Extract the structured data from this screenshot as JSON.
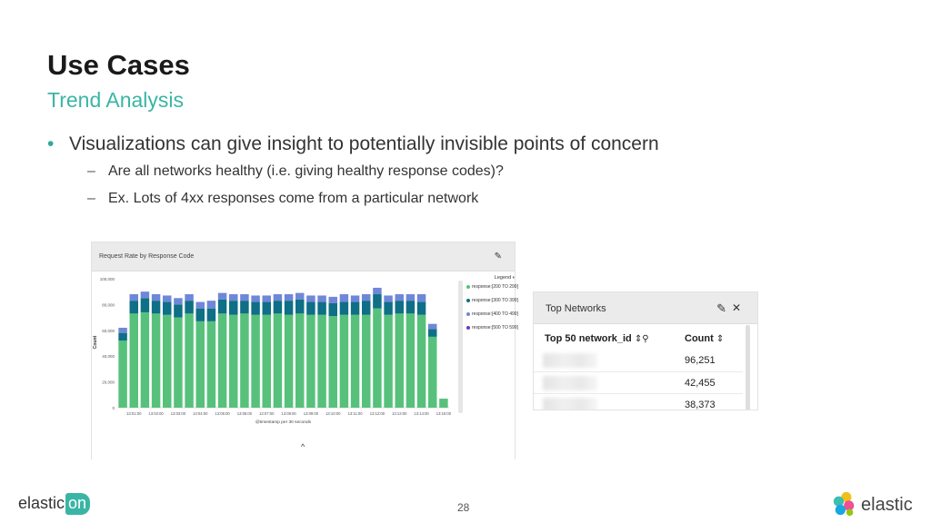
{
  "slide": {
    "title": "Use Cases",
    "subtitle": "Trend Analysis",
    "bullet": "Visualizations can give insight to potentially invisible points of concern",
    "sub_bullets": [
      "Are all networks healthy (i.e. giving healthy response codes)?",
      "Ex. Lots of 4xx responses come from a particular network"
    ],
    "page_number": "28"
  },
  "chart_panel": {
    "title": "Request Rate by Response Code",
    "legend_title": "Legend",
    "legend": [
      {
        "label": "response:[200 TO 299]",
        "color": "#57c17b"
      },
      {
        "label": "response:[300 TO 399]",
        "color": "#0e6f86"
      },
      {
        "label": "response:[400 TO 499]",
        "color": "#6f87d8"
      },
      {
        "label": "response:[500 TO 599]",
        "color": "#663db8"
      }
    ]
  },
  "chart_data": {
    "type": "bar",
    "stacked": true,
    "ylabel": "Count",
    "xlabel": "@timestamp per 30 seconds",
    "ylim": [
      0,
      100000
    ],
    "y_ticks": [
      "0",
      "20,000",
      "40,000",
      "60,000",
      "80,000",
      "100,000"
    ],
    "x_ticks": [
      "13:01:00",
      "13:02:00",
      "13:03:00",
      "13:04:00",
      "13:05:00",
      "13:06:00",
      "13:07:00",
      "13:08:00",
      "13:09:00",
      "13:10:00",
      "13:11:00",
      "13:12:00",
      "13:13:00",
      "13:14:00",
      "13:15:00"
    ],
    "series": [
      {
        "label": "response:[200 TO 299]",
        "color": "#57c17b",
        "values": [
          52000,
          73000,
          74000,
          73000,
          72000,
          70000,
          73000,
          67000,
          67000,
          73000,
          72000,
          73000,
          72000,
          72000,
          73000,
          72000,
          73000,
          72000,
          72000,
          71000,
          72000,
          72000,
          72000,
          77000,
          72000,
          73000,
          73000,
          72000,
          55000,
          7000
        ]
      },
      {
        "label": "response:[300 TO 399]",
        "color": "#0e6f86",
        "values": [
          6000,
          10000,
          11000,
          10000,
          10000,
          10000,
          10000,
          10000,
          10000,
          11000,
          11000,
          10000,
          10000,
          10000,
          10000,
          11000,
          11000,
          10000,
          10000,
          10000,
          10000,
          10000,
          11000,
          11000,
          10000,
          10000,
          10000,
          10000,
          6000,
          0
        ]
      },
      {
        "label": "response:[400 TO 499]",
        "color": "#6f87d8",
        "values": [
          4000,
          5000,
          5000,
          5000,
          5000,
          5000,
          5000,
          5000,
          6000,
          5000,
          5000,
          5000,
          5000,
          5000,
          5000,
          5000,
          5000,
          5000,
          5000,
          5000,
          6000,
          5000,
          5000,
          5000,
          5000,
          5000,
          5000,
          6000,
          4000,
          0
        ]
      },
      {
        "label": "response:[500 TO 599]",
        "color": "#663db8",
        "values": [
          0,
          0,
          0,
          0,
          0,
          0,
          0,
          0,
          0,
          0,
          0,
          0,
          0,
          0,
          0,
          0,
          0,
          0,
          0,
          0,
          0,
          0,
          0,
          0,
          0,
          0,
          0,
          0,
          0,
          0
        ]
      }
    ]
  },
  "networks_panel": {
    "title": "Top Networks",
    "col1": "Top 50 network_id",
    "col2": "Count",
    "rows": [
      {
        "count": "96,251"
      },
      {
        "count": "42,455"
      },
      {
        "count": "38,373"
      }
    ]
  },
  "footer": {
    "left_logo_main": "elastic",
    "left_logo_on": "on",
    "right_logo": "elastic"
  }
}
